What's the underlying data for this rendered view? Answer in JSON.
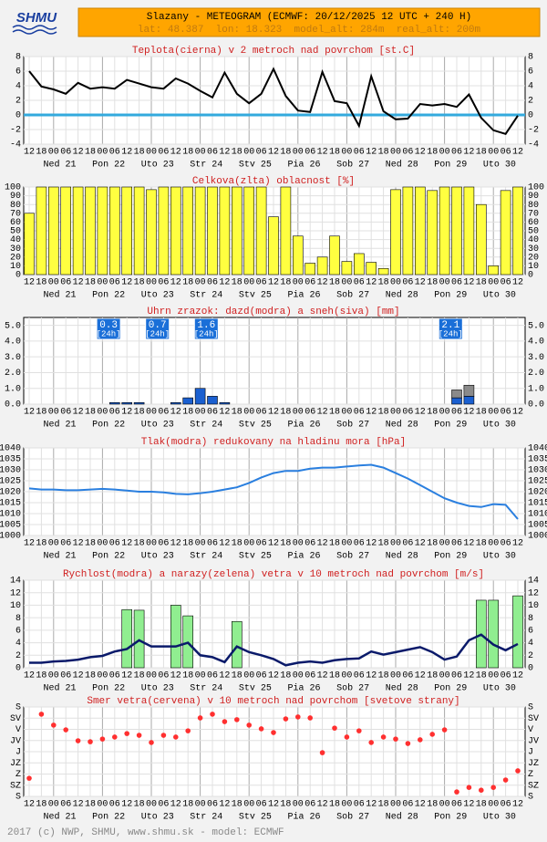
{
  "header": {
    "logo": "SHMU",
    "title": "Slazany - METEOGRAM (ECMWF: 20/12/2025 12 UTC + 240 H)",
    "subtitle": "lat: 48.387  lon: 18.323  model_alt: 284m  real_alt: 200m"
  },
  "footer": {
    "text": "2017 (c) NWP, SHMU, www.shmu.sk - model: ECMWF"
  },
  "chart_data": [
    {
      "type": "line",
      "title": "Teplota(cierna) v 2 metroch nad povrchom [st.C]",
      "color": "#000000",
      "zero_line": true,
      "zero_line_color": "#33aadd",
      "categories": [
        "12",
        "18",
        "00",
        "06",
        "12",
        "18",
        "00",
        "06",
        "12",
        "18",
        "00",
        "06",
        "12",
        "18",
        "00",
        "06",
        "12",
        "18",
        "00",
        "06",
        "12",
        "18",
        "00",
        "06",
        "12",
        "18",
        "00",
        "06",
        "12",
        "18",
        "00",
        "06",
        "12",
        "18",
        "00",
        "06",
        "12",
        "18",
        "00",
        "06",
        "12"
      ],
      "days": [
        "Ned 21",
        "Pon 22",
        "Uto 23",
        "Str 24",
        "Stv 25",
        "Pia 26",
        "Sob 27",
        "Ned 28",
        "Pon 29",
        "Uto 30"
      ],
      "values": [
        6,
        3.9,
        3.5,
        2.9,
        4.4,
        3.6,
        3.8,
        3.6,
        4.8,
        4.3,
        3.8,
        3.6,
        5,
        4.3,
        3.3,
        2.4,
        5.8,
        2.9,
        1.6,
        2.9,
        6.3,
        2.6,
        0.6,
        0.4,
        5.9,
        1.9,
        1.6,
        -1.5,
        5.3,
        0.5,
        -0.6,
        -0.5,
        1.5,
        1.3,
        1.5,
        1.1,
        2.8,
        -0.4,
        -2.1,
        -2.6,
        -0.1
      ],
      "ylim": [
        -4,
        8
      ],
      "yticks": [
        -4,
        -2,
        0,
        2,
        4,
        6,
        8
      ],
      "grid": true
    },
    {
      "type": "bar",
      "title": "Celkova(zlta) oblacnost [%]",
      "color": "#ffff40",
      "categories": [
        "12",
        "18",
        "00",
        "06",
        "12",
        "18",
        "00",
        "06",
        "12",
        "18",
        "00",
        "06",
        "12",
        "18",
        "00",
        "06",
        "12",
        "18",
        "00",
        "06",
        "12",
        "18",
        "00",
        "06",
        "12",
        "18",
        "00",
        "06",
        "12",
        "18",
        "00",
        "06",
        "12",
        "18",
        "00",
        "06",
        "12",
        "18",
        "00",
        "06",
        "12"
      ],
      "days": [
        "Ned 21",
        "Pon 22",
        "Uto 23",
        "Str 24",
        "Stv 25",
        "Pia 26",
        "Sob 27",
        "Ned 28",
        "Pon 29",
        "Uto 30"
      ],
      "values": [
        70,
        100,
        100,
        100,
        100,
        100,
        100,
        100,
        100,
        100,
        97,
        100,
        100,
        100,
        100,
        100,
        100,
        100,
        100,
        100,
        66,
        100,
        44,
        13,
        20,
        44,
        15,
        24,
        14,
        7,
        97,
        100,
        100,
        96,
        100,
        100,
        100,
        80,
        10,
        96,
        100
      ],
      "ylim": [
        0,
        100
      ],
      "yticks": [
        0,
        10,
        20,
        30,
        40,
        50,
        60,
        70,
        80,
        90,
        100
      ],
      "grid": true
    },
    {
      "type": "stacked_bar",
      "title": "Uhrn zrazok: dazd(modra) a sneh(siva) [mm]",
      "categories": [
        "12",
        "18",
        "00",
        "06",
        "12",
        "18",
        "00",
        "06",
        "12",
        "18",
        "00",
        "06",
        "12",
        "18",
        "00",
        "06",
        "12",
        "18",
        "00",
        "06",
        "12",
        "18",
        "00",
        "06",
        "12",
        "18",
        "00",
        "06",
        "12",
        "18",
        "00",
        "06",
        "12",
        "18",
        "00",
        "06",
        "12",
        "18",
        "00",
        "06",
        "12"
      ],
      "days": [
        "Ned 21",
        "Pon 22",
        "Uto 23",
        "Str 24",
        "Stv 25",
        "Pia 26",
        "Sob 27",
        "Ned 28",
        "Pon 29",
        "Uto 30"
      ],
      "series": [
        {
          "color": "#1a5fd0",
          "values": [
            0,
            0,
            0,
            0,
            0,
            0,
            0,
            0.1,
            0.1,
            0.1,
            0,
            0,
            0.1,
            0.4,
            1.0,
            0.5,
            0.1,
            0,
            0,
            0,
            0,
            0,
            0,
            0,
            0,
            0,
            0,
            0,
            0,
            0,
            0,
            0,
            0,
            0,
            0,
            0.4,
            0.5,
            0,
            0,
            0,
            0
          ]
        },
        {
          "color": "#8a8a8a",
          "values": [
            0,
            0,
            0,
            0,
            0,
            0,
            0,
            0,
            0,
            0,
            0,
            0,
            0,
            0,
            0,
            0,
            0,
            0,
            0,
            0,
            0,
            0,
            0,
            0,
            0,
            0,
            0,
            0,
            0,
            0,
            0,
            0,
            0,
            0,
            0,
            0.5,
            0.7,
            0,
            0,
            0,
            0
          ]
        }
      ],
      "daily_totals": [
        {
          "value": 0.3,
          "period": "[24h]"
        },
        {
          "value": 0.7,
          "period": "[24h]"
        },
        {
          "value": 1.6,
          "period": "[24h]"
        },
        {
          "value": 2.1,
          "period": "[24h]"
        }
      ],
      "ylim": [
        0,
        5.5
      ],
      "yticks": [
        {
          "value": 0,
          "label": "0.0"
        },
        {
          "value": 1,
          "label": "1.0"
        },
        {
          "value": 2,
          "label": "2.0"
        },
        {
          "value": 3,
          "label": "3.0"
        },
        {
          "value": 4,
          "label": "4.0"
        },
        {
          "value": 5,
          "label": "5.0"
        }
      ],
      "grid": true
    },
    {
      "type": "line",
      "title": "Tlak(modra) redukovany na hladinu mora [hPa]",
      "color": "#2a7fdf",
      "categories": [
        "12",
        "18",
        "00",
        "06",
        "12",
        "18",
        "00",
        "06",
        "12",
        "18",
        "00",
        "06",
        "12",
        "18",
        "00",
        "06",
        "12",
        "18",
        "00",
        "06",
        "12",
        "18",
        "00",
        "06",
        "12",
        "18",
        "00",
        "06",
        "12",
        "18",
        "00",
        "06",
        "12",
        "18",
        "00",
        "06",
        "12",
        "18",
        "00",
        "06",
        "12"
      ],
      "days": [
        "Ned 21",
        "Pon 22",
        "Uto 23",
        "Str 24",
        "Stv 25",
        "Pia 26",
        "Sob 27",
        "Ned 28",
        "Pon 29",
        "Uto 30"
      ],
      "values": [
        1021.5,
        1021,
        1021,
        1020.7,
        1020.7,
        1021,
        1021.3,
        1021,
        1020.5,
        1020,
        1020,
        1019.7,
        1019,
        1018.8,
        1019.3,
        1020,
        1021,
        1022,
        1024,
        1026.5,
        1028.5,
        1029.5,
        1029.5,
        1030.5,
        1031,
        1031,
        1031.5,
        1032,
        1032.3,
        1031,
        1028.5,
        1026,
        1023,
        1020,
        1017,
        1015,
        1013.5,
        1013,
        1014.3,
        1014,
        1007.5
      ],
      "ylim": [
        1000,
        1040
      ],
      "yticks": [
        1000,
        1005,
        1010,
        1015,
        1020,
        1025,
        1030,
        1035,
        1040
      ],
      "grid": true
    },
    {
      "type": "combo",
      "title": "Rychlost(modra) a narazy(zelena) vetra v 10 metroch nad povrchom [m/s]",
      "categories": [
        "12",
        "18",
        "00",
        "06",
        "12",
        "18",
        "00",
        "06",
        "12",
        "18",
        "00",
        "06",
        "12",
        "18",
        "00",
        "06",
        "12",
        "18",
        "00",
        "06",
        "12",
        "18",
        "00",
        "06",
        "12",
        "18",
        "00",
        "06",
        "12",
        "18",
        "00",
        "06",
        "12",
        "18",
        "00",
        "06",
        "12",
        "18",
        "00",
        "06",
        "12"
      ],
      "days": [
        "Ned 21",
        "Pon 22",
        "Uto 23",
        "Str 24",
        "Stv 25",
        "Pia 26",
        "Sob 27",
        "Ned 28",
        "Pon 29",
        "Uto 30"
      ],
      "series": [
        {
          "type": "bar",
          "color": "#90ee90",
          "values": [
            null,
            null,
            null,
            null,
            null,
            null,
            null,
            null,
            9.3,
            9.2,
            null,
            null,
            10,
            8.3,
            null,
            null,
            null,
            7.4,
            null,
            null,
            null,
            null,
            null,
            null,
            null,
            null,
            null,
            null,
            null,
            null,
            null,
            null,
            null,
            null,
            null,
            null,
            null,
            10.8,
            10.8,
            null,
            11.5
          ]
        },
        {
          "type": "line",
          "color": "#0a1a6a",
          "values": [
            0.8,
            0.8,
            1,
            1.1,
            1.3,
            1.7,
            1.9,
            2.6,
            3,
            4.4,
            3.4,
            3.4,
            3.4,
            4,
            2,
            1.7,
            0.9,
            3.4,
            2.5,
            2,
            1.4,
            0.4,
            0.8,
            1,
            0.8,
            1.2,
            1.4,
            1.5,
            2.6,
            2.1,
            2.5,
            2.9,
            3.3,
            2.5,
            1.3,
            1.8,
            4.4,
            5.3,
            3.7,
            2.8,
            3.8
          ]
        }
      ],
      "ylim": [
        0,
        14
      ],
      "yticks": [
        0,
        2,
        4,
        6,
        8,
        10,
        12,
        14
      ],
      "grid": true
    },
    {
      "type": "dot",
      "title": "Smer vetra(cervena) v 10 metroch nad povrchom [svetove strany]",
      "color": "#ff3030",
      "categories": [
        "12",
        "18",
        "00",
        "06",
        "12",
        "18",
        "00",
        "06",
        "12",
        "18",
        "00",
        "06",
        "12",
        "18",
        "00",
        "06",
        "12",
        "18",
        "00",
        "06",
        "12",
        "18",
        "00",
        "06",
        "12",
        "18",
        "00",
        "06",
        "12",
        "18",
        "00",
        "06",
        "12",
        "18",
        "00",
        "06",
        "12",
        "18",
        "00",
        "06",
        "12"
      ],
      "days": [
        "Ned 21",
        "Pon 22",
        "Uto 23",
        "Str 24",
        "Stv 25",
        "Pia 26",
        "Sob 27",
        "Ned 28",
        "Pon 29",
        "Uto 30"
      ],
      "values": [
        287,
        29,
        73,
        92,
        136,
        140,
        129,
        121,
        107,
        114,
        143,
        114,
        121,
        96,
        44,
        29,
        59,
        51,
        73,
        88,
        103,
        48,
        40,
        44,
        184,
        85,
        121,
        96,
        143,
        121,
        129,
        147,
        132,
        110,
        92,
        342,
        324,
        335,
        324,
        294,
        257
      ],
      "ylim": [
        360,
        0
      ],
      "yticks": [
        {
          "value": 0,
          "label": "S"
        },
        {
          "value": 45,
          "label": "SV"
        },
        {
          "value": 90,
          "label": "V"
        },
        {
          "value": 135,
          "label": "JV"
        },
        {
          "value": 180,
          "label": "J"
        },
        {
          "value": 225,
          "label": "JZ"
        },
        {
          "value": 270,
          "label": "Z"
        },
        {
          "value": 315,
          "label": "SZ"
        },
        {
          "value": 360,
          "label": "S"
        }
      ],
      "grid": true
    }
  ]
}
